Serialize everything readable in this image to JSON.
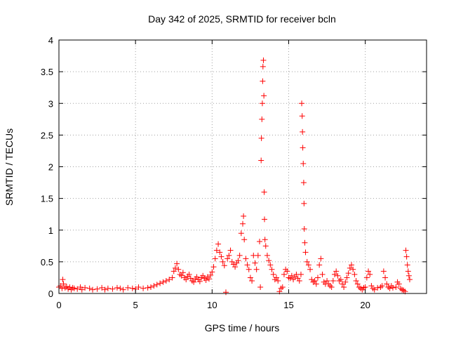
{
  "chart_data": {
    "type": "scatter",
    "title": "Day 342 of 2025, SRMTID for receiver bcln",
    "xlabel": "GPS time / hours",
    "ylabel": "SRMTID / TECUs",
    "xlim": [
      0,
      24
    ],
    "ylim": [
      0,
      4
    ],
    "xticks": [
      0,
      5,
      10,
      15,
      20
    ],
    "xtick_labels": [
      "0",
      "5",
      "10",
      "15",
      "20"
    ],
    "yticks": [
      0,
      0.5,
      1,
      1.5,
      2,
      2.5,
      3,
      3.5,
      4
    ],
    "ytick_labels": [
      "0",
      "0.5",
      "1",
      "1.5",
      "2",
      "2.5",
      "3",
      "3.5",
      "4"
    ],
    "grid": true,
    "marker": "+",
    "series": [
      {
        "name": "SRMTID",
        "color": "#ff0000",
        "points": [
          [
            0.0,
            0.1
          ],
          [
            0.1,
            0.12
          ],
          [
            0.2,
            0.08
          ],
          [
            0.25,
            0.22
          ],
          [
            0.3,
            0.15
          ],
          [
            0.4,
            0.09
          ],
          [
            0.5,
            0.11
          ],
          [
            0.6,
            0.07
          ],
          [
            0.7,
            0.1
          ],
          [
            0.8,
            0.06
          ],
          [
            0.9,
            0.09
          ],
          [
            1.0,
            0.08
          ],
          [
            1.2,
            0.07
          ],
          [
            1.4,
            0.1
          ],
          [
            1.5,
            0.06
          ],
          [
            1.7,
            0.09
          ],
          [
            2.0,
            0.08
          ],
          [
            2.2,
            0.06
          ],
          [
            2.5,
            0.07
          ],
          [
            2.8,
            0.09
          ],
          [
            3.0,
            0.06
          ],
          [
            3.2,
            0.08
          ],
          [
            3.5,
            0.07
          ],
          [
            3.8,
            0.09
          ],
          [
            4.0,
            0.08
          ],
          [
            4.2,
            0.06
          ],
          [
            4.5,
            0.09
          ],
          [
            4.8,
            0.08
          ],
          [
            5.0,
            0.07
          ],
          [
            5.2,
            0.1
          ],
          [
            5.5,
            0.08
          ],
          [
            5.8,
            0.09
          ],
          [
            6.0,
            0.1
          ],
          [
            6.2,
            0.12
          ],
          [
            6.4,
            0.14
          ],
          [
            6.6,
            0.16
          ],
          [
            6.8,
            0.18
          ],
          [
            7.0,
            0.2
          ],
          [
            7.2,
            0.22
          ],
          [
            7.4,
            0.25
          ],
          [
            7.5,
            0.35
          ],
          [
            7.6,
            0.4
          ],
          [
            7.7,
            0.47
          ],
          [
            7.8,
            0.38
          ],
          [
            7.9,
            0.3
          ],
          [
            8.0,
            0.28
          ],
          [
            8.1,
            0.33
          ],
          [
            8.2,
            0.25
          ],
          [
            8.3,
            0.22
          ],
          [
            8.4,
            0.27
          ],
          [
            8.5,
            0.3
          ],
          [
            8.6,
            0.24
          ],
          [
            8.7,
            0.2
          ],
          [
            8.8,
            0.18
          ],
          [
            8.9,
            0.23
          ],
          [
            9.0,
            0.26
          ],
          [
            9.1,
            0.22
          ],
          [
            9.2,
            0.19
          ],
          [
            9.3,
            0.25
          ],
          [
            9.4,
            0.28
          ],
          [
            9.5,
            0.24
          ],
          [
            9.6,
            0.21
          ],
          [
            9.7,
            0.26
          ],
          [
            9.8,
            0.23
          ],
          [
            9.9,
            0.29
          ],
          [
            10.0,
            0.34
          ],
          [
            10.1,
            0.42
          ],
          [
            10.2,
            0.55
          ],
          [
            10.3,
            0.68
          ],
          [
            10.4,
            0.78
          ],
          [
            10.5,
            0.65
          ],
          [
            10.6,
            0.58
          ],
          [
            10.7,
            0.5
          ],
          [
            10.8,
            0.44
          ],
          [
            10.9,
            0.02
          ],
          [
            11.0,
            0.55
          ],
          [
            11.1,
            0.6
          ],
          [
            11.2,
            0.68
          ],
          [
            11.3,
            0.5
          ],
          [
            11.4,
            0.46
          ],
          [
            11.5,
            0.42
          ],
          [
            11.6,
            0.48
          ],
          [
            11.7,
            0.52
          ],
          [
            11.8,
            0.6
          ],
          [
            11.9,
            0.95
          ],
          [
            12.0,
            1.1
          ],
          [
            12.05,
            1.22
          ],
          [
            12.1,
            0.85
          ],
          [
            12.2,
            0.55
          ],
          [
            12.3,
            0.45
          ],
          [
            12.4,
            0.38
          ],
          [
            12.5,
            0.25
          ],
          [
            12.6,
            0.2
          ],
          [
            12.7,
            0.6
          ],
          [
            12.8,
            0.48
          ],
          [
            12.9,
            0.38
          ],
          [
            13.0,
            0.6
          ],
          [
            13.1,
            0.82
          ],
          [
            13.15,
            0.1
          ],
          [
            13.2,
            2.1
          ],
          [
            13.22,
            2.45
          ],
          [
            13.25,
            2.75
          ],
          [
            13.28,
            3.0
          ],
          [
            13.3,
            3.35
          ],
          [
            13.32,
            3.58
          ],
          [
            13.35,
            3.68
          ],
          [
            13.38,
            3.12
          ],
          [
            13.4,
            1.6
          ],
          [
            13.42,
            1.17
          ],
          [
            13.45,
            0.85
          ],
          [
            13.5,
            0.75
          ],
          [
            13.6,
            0.6
          ],
          [
            13.7,
            0.52
          ],
          [
            13.8,
            0.45
          ],
          [
            13.9,
            0.38
          ],
          [
            14.0,
            0.3
          ],
          [
            14.1,
            0.22
          ],
          [
            14.2,
            0.25
          ],
          [
            14.3,
            0.2
          ],
          [
            14.4,
            0.03
          ],
          [
            14.5,
            0.08
          ],
          [
            14.6,
            0.1
          ],
          [
            14.7,
            0.3
          ],
          [
            14.8,
            0.38
          ],
          [
            14.9,
            0.35
          ],
          [
            15.0,
            0.25
          ],
          [
            15.1,
            0.24
          ],
          [
            15.2,
            0.28
          ],
          [
            15.3,
            0.22
          ],
          [
            15.4,
            0.26
          ],
          [
            15.5,
            0.3
          ],
          [
            15.6,
            0.24
          ],
          [
            15.7,
            0.2
          ],
          [
            15.8,
            0.3
          ],
          [
            15.85,
            3.0
          ],
          [
            15.88,
            2.8
          ],
          [
            15.9,
            2.55
          ],
          [
            15.92,
            2.3
          ],
          [
            15.95,
            2.05
          ],
          [
            15.98,
            1.75
          ],
          [
            16.0,
            1.42
          ],
          [
            16.02,
            1.02
          ],
          [
            16.05,
            0.8
          ],
          [
            16.1,
            0.65
          ],
          [
            16.2,
            0.5
          ],
          [
            16.3,
            0.45
          ],
          [
            16.4,
            0.38
          ],
          [
            16.5,
            0.22
          ],
          [
            16.6,
            0.18
          ],
          [
            16.7,
            0.2
          ],
          [
            16.8,
            0.15
          ],
          [
            16.9,
            0.25
          ],
          [
            17.0,
            0.45
          ],
          [
            17.1,
            0.55
          ],
          [
            17.2,
            0.3
          ],
          [
            17.3,
            0.18
          ],
          [
            17.4,
            0.15
          ],
          [
            17.5,
            0.2
          ],
          [
            17.6,
            0.15
          ],
          [
            17.7,
            0.12
          ],
          [
            17.8,
            0.1
          ],
          [
            17.9,
            0.2
          ],
          [
            18.0,
            0.3
          ],
          [
            18.1,
            0.35
          ],
          [
            18.2,
            0.28
          ],
          [
            18.3,
            0.2
          ],
          [
            18.4,
            0.22
          ],
          [
            18.5,
            0.15
          ],
          [
            18.6,
            0.1
          ],
          [
            18.7,
            0.18
          ],
          [
            18.8,
            0.25
          ],
          [
            18.9,
            0.32
          ],
          [
            19.0,
            0.4
          ],
          [
            19.1,
            0.45
          ],
          [
            19.2,
            0.38
          ],
          [
            19.3,
            0.3
          ],
          [
            19.4,
            0.2
          ],
          [
            19.5,
            0.15
          ],
          [
            19.6,
            0.1
          ],
          [
            19.7,
            0.08
          ],
          [
            19.8,
            0.06
          ],
          [
            19.9,
            0.09
          ],
          [
            20.0,
            0.1
          ],
          [
            20.1,
            0.25
          ],
          [
            20.2,
            0.35
          ],
          [
            20.3,
            0.3
          ],
          [
            20.4,
            0.12
          ],
          [
            20.5,
            0.08
          ],
          [
            20.6,
            0.06
          ],
          [
            20.8,
            0.09
          ],
          [
            21.0,
            0.1
          ],
          [
            21.1,
            0.12
          ],
          [
            21.2,
            0.35
          ],
          [
            21.3,
            0.25
          ],
          [
            21.4,
            0.15
          ],
          [
            21.5,
            0.1
          ],
          [
            21.6,
            0.08
          ],
          [
            21.7,
            0.12
          ],
          [
            21.8,
            0.09
          ],
          [
            22.0,
            0.1
          ],
          [
            22.1,
            0.18
          ],
          [
            22.2,
            0.15
          ],
          [
            22.3,
            0.08
          ],
          [
            22.4,
            0.06
          ],
          [
            22.5,
            0.05
          ],
          [
            22.6,
            0.03
          ],
          [
            22.65,
            0.68
          ],
          [
            22.7,
            0.58
          ],
          [
            22.75,
            0.45
          ],
          [
            22.8,
            0.35
          ],
          [
            22.85,
            0.28
          ],
          [
            22.9,
            0.22
          ]
        ]
      }
    ]
  }
}
